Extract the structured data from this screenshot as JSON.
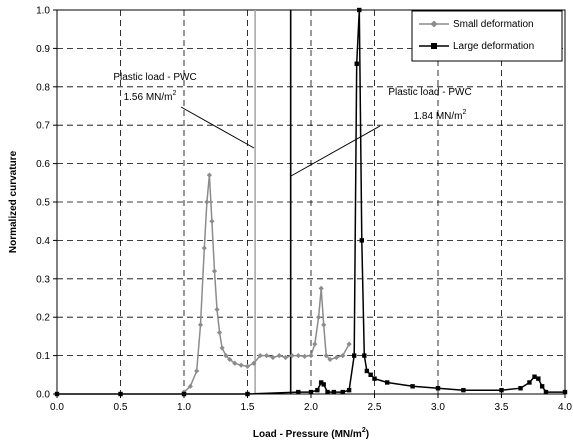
{
  "chart_data": {
    "type": "line",
    "title": "",
    "xlabel": "Load - Pressure (MN/m",
    "xlabel_sup": "2",
    "xlabel_end": ")",
    "ylabel": "Normalized curvature",
    "xlim": [
      0.0,
      4.0
    ],
    "ylim": [
      0.0,
      1.0
    ],
    "x_ticks": [
      "0.0",
      "0.5",
      "1.0",
      "1.5",
      "2.0",
      "2.5",
      "3.0",
      "3.5",
      "4.0"
    ],
    "y_ticks": [
      "0.0",
      "0.1",
      "0.2",
      "0.3",
      "0.4",
      "0.5",
      "0.6",
      "0.7",
      "0.8",
      "0.9",
      "1.0"
    ],
    "grid": true,
    "legend_position": "top-right",
    "series": [
      {
        "name": "Small deformation",
        "color": "#8c8c8c",
        "marker": "diamond",
        "x": [
          1.0,
          1.05,
          1.1,
          1.13,
          1.16,
          1.18,
          1.2,
          1.22,
          1.24,
          1.26,
          1.28,
          1.3,
          1.33,
          1.36,
          1.4,
          1.45,
          1.5,
          1.55,
          1.6,
          1.65,
          1.7,
          1.75,
          1.8,
          1.85,
          1.9,
          1.95,
          2.0,
          2.03,
          2.06,
          2.08,
          2.1,
          2.12,
          2.15,
          2.2,
          2.25,
          2.3
        ],
        "y": [
          0.005,
          0.02,
          0.06,
          0.18,
          0.38,
          0.5,
          0.57,
          0.45,
          0.32,
          0.22,
          0.16,
          0.12,
          0.1,
          0.09,
          0.08,
          0.075,
          0.072,
          0.08,
          0.1,
          0.1,
          0.095,
          0.1,
          0.095,
          0.1,
          0.1,
          0.098,
          0.1,
          0.13,
          0.2,
          0.275,
          0.18,
          0.1,
          0.09,
          0.095,
          0.1,
          0.13
        ]
      },
      {
        "name": "Large deformation",
        "color": "#000000",
        "marker": "square",
        "x": [
          0.0,
          0.5,
          1.0,
          1.5,
          1.9,
          2.0,
          2.05,
          2.08,
          2.1,
          2.13,
          2.18,
          2.25,
          2.3,
          2.34,
          2.36,
          2.38,
          2.4,
          2.42,
          2.44,
          2.47,
          2.5,
          2.6,
          2.8,
          3.0,
          3.2,
          3.5,
          3.65,
          3.72,
          3.76,
          3.79,
          3.82,
          3.85,
          4.0
        ],
        "y": [
          0.0,
          0.0,
          0.0,
          0.0,
          0.005,
          0.005,
          0.01,
          0.03,
          0.025,
          0.005,
          0.005,
          0.005,
          0.01,
          0.1,
          0.86,
          1.0,
          0.4,
          0.1,
          0.06,
          0.05,
          0.04,
          0.03,
          0.02,
          0.015,
          0.01,
          0.01,
          0.015,
          0.03,
          0.045,
          0.04,
          0.02,
          0.005,
          0.005
        ]
      }
    ],
    "vertical_lines": [
      {
        "x": 1.56,
        "color": "#aaaaaa"
      },
      {
        "x": 1.84,
        "color": "#000000"
      }
    ],
    "annotations": [
      {
        "line1": "Plastic load - PWC",
        "line2": "1.56 MN/m",
        "sup": "2"
      },
      {
        "line1": "Plastic load - PWC",
        "line2": "1.84 MN/m",
        "sup": "2"
      }
    ]
  }
}
